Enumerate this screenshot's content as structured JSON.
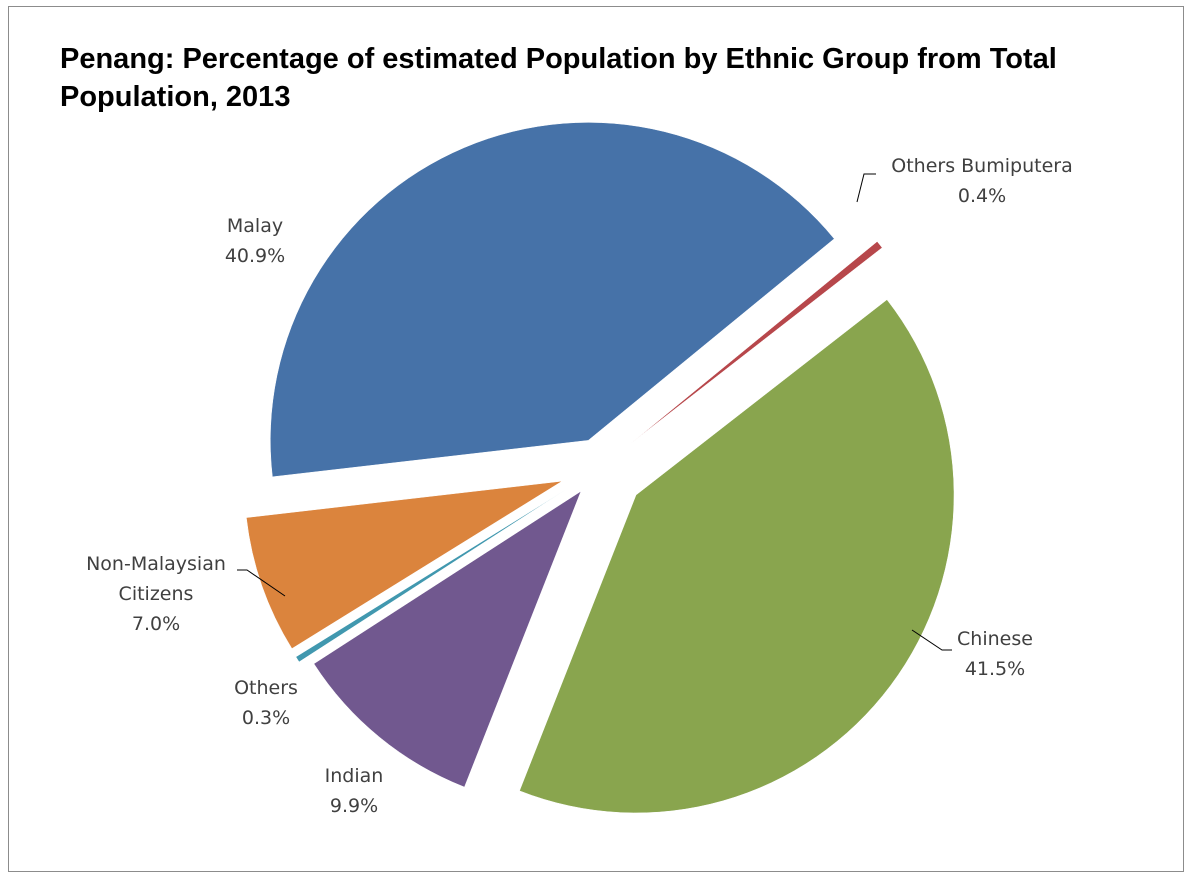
{
  "chart_data": {
    "type": "pie",
    "title": "Penang: Percentage of estimated Population by Ethnic Group from Total Population, 2013",
    "slices": [
      {
        "name": "Malay",
        "value": 40.9,
        "value_label": "40.9%",
        "color": "#4672a8"
      },
      {
        "name": "Others Bumiputera",
        "value": 0.4,
        "value_label": "0.4%",
        "color": "#b7474b"
      },
      {
        "name": "Chinese",
        "value": 41.5,
        "value_label": "41.5%",
        "color": "#89a54e"
      },
      {
        "name": "Indian",
        "value": 9.9,
        "value_label": "9.9%",
        "color": "#71588f"
      },
      {
        "name": "Others",
        "value": 0.3,
        "value_label": "0.3%",
        "color": "#4198af"
      },
      {
        "name": "Non-Malaysian Citizens",
        "value": 7.0,
        "value_label": "7.0%",
        "color": "#db843d"
      }
    ],
    "start_slice": "Indian",
    "direction": "clockwise",
    "exploded": true,
    "legend": "none",
    "data_labels": "category name and percentage"
  }
}
